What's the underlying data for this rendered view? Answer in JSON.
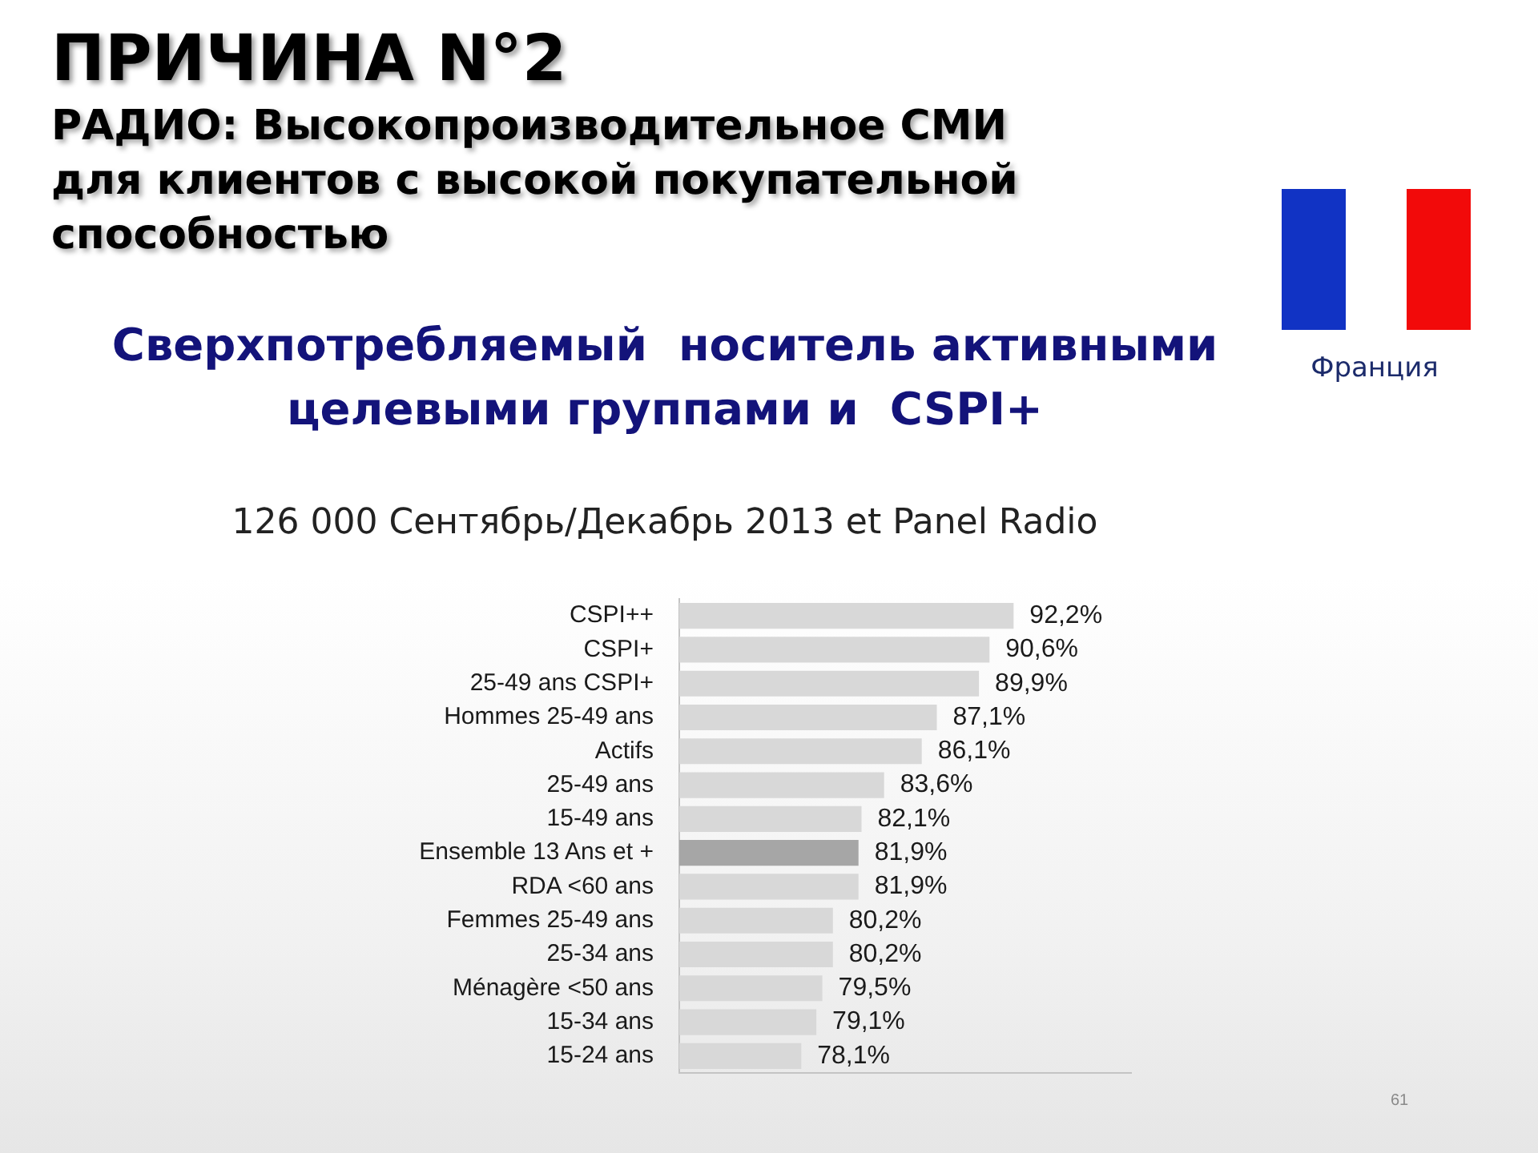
{
  "chart_data": {
    "type": "bar",
    "orientation": "horizontal",
    "title": "ПРИЧИНА N°2",
    "subtitle": "РАДИО: Высокопроизводительное СМИ для клиентов с высокой покупательной способностью",
    "annotations": [
      "Сверхпотребляемый  носитель активными целевыми группами и  CSPI+",
      "126 000 Сентябрь/Декабрь 2013 et Panel Radio",
      "Франция",
      "61"
    ],
    "categories": [
      "CSPI++",
      "CSPI+",
      "25-49 ans CSPI+",
      "Hommes 25-49 ans",
      "Actifs",
      "25-49 ans",
      "15-49 ans",
      "Ensemble 13 Ans et +",
      "RDA <60 ans",
      "Femmes 25-49 ans",
      "25-34 ans",
      "Ménagère <50 ans",
      "15-34 ans",
      "15-24 ans"
    ],
    "values": [
      92.2,
      90.6,
      89.9,
      87.1,
      86.1,
      83.6,
      82.1,
      81.9,
      81.9,
      80.2,
      80.2,
      79.5,
      79.1,
      78.1
    ],
    "colors": [
      "#d8d8d8",
      "#d8d8d8",
      "#d8d8d8",
      "#d8d8d8",
      "#d8d8d8",
      "#d8d8d8",
      "#d8d8d8",
      "#a6a6a6",
      "#d8d8d8",
      "#d8d8d8",
      "#d8d8d8",
      "#d8d8d8",
      "#d8d8d8",
      "#d8d8d8"
    ],
    "value_labels": [
      "92,2%",
      "90,6%",
      "89,9%",
      "87,1%",
      "86,1%",
      "83,6%",
      "82,1%",
      "81,9%",
      "81,9%",
      "80,2%",
      "80,2%",
      "79,5%",
      "79,1%",
      "78,1%"
    ],
    "xlim": [
      70,
      100
    ],
    "tick_labels": "y"
  }
}
